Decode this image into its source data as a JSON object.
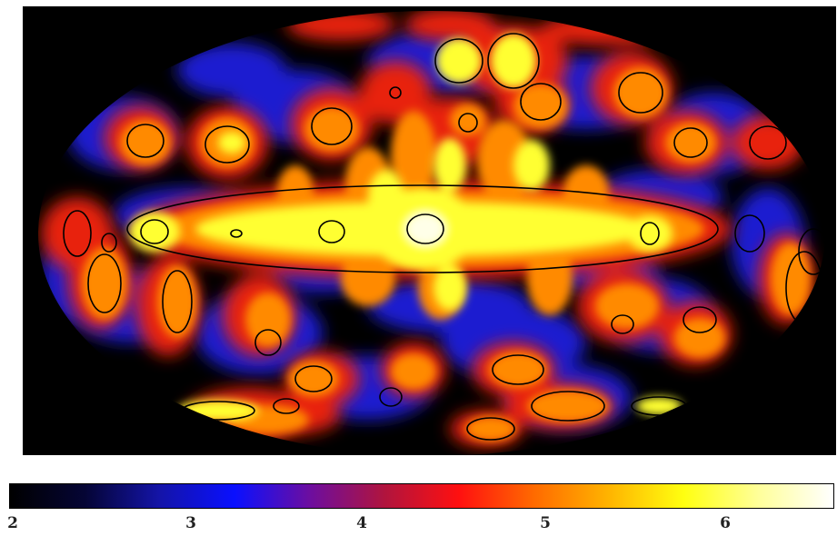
{
  "colorbar": {
    "ticks": [
      "2",
      "3",
      "4",
      "5",
      "6"
    ],
    "range": [
      2,
      6.6
    ],
    "colormap": [
      "#000000",
      "#050535",
      "#1414a8",
      "#0a10ff",
      "#6c0ea0",
      "#b0143e",
      "#ff1010",
      "#ff6a00",
      "#ffb400",
      "#ffff10",
      "#ffff9a",
      "#ffffff"
    ]
  },
  "map": {
    "projection": "Mollweide",
    "background": "#000000",
    "contour_color": "#000000"
  }
}
